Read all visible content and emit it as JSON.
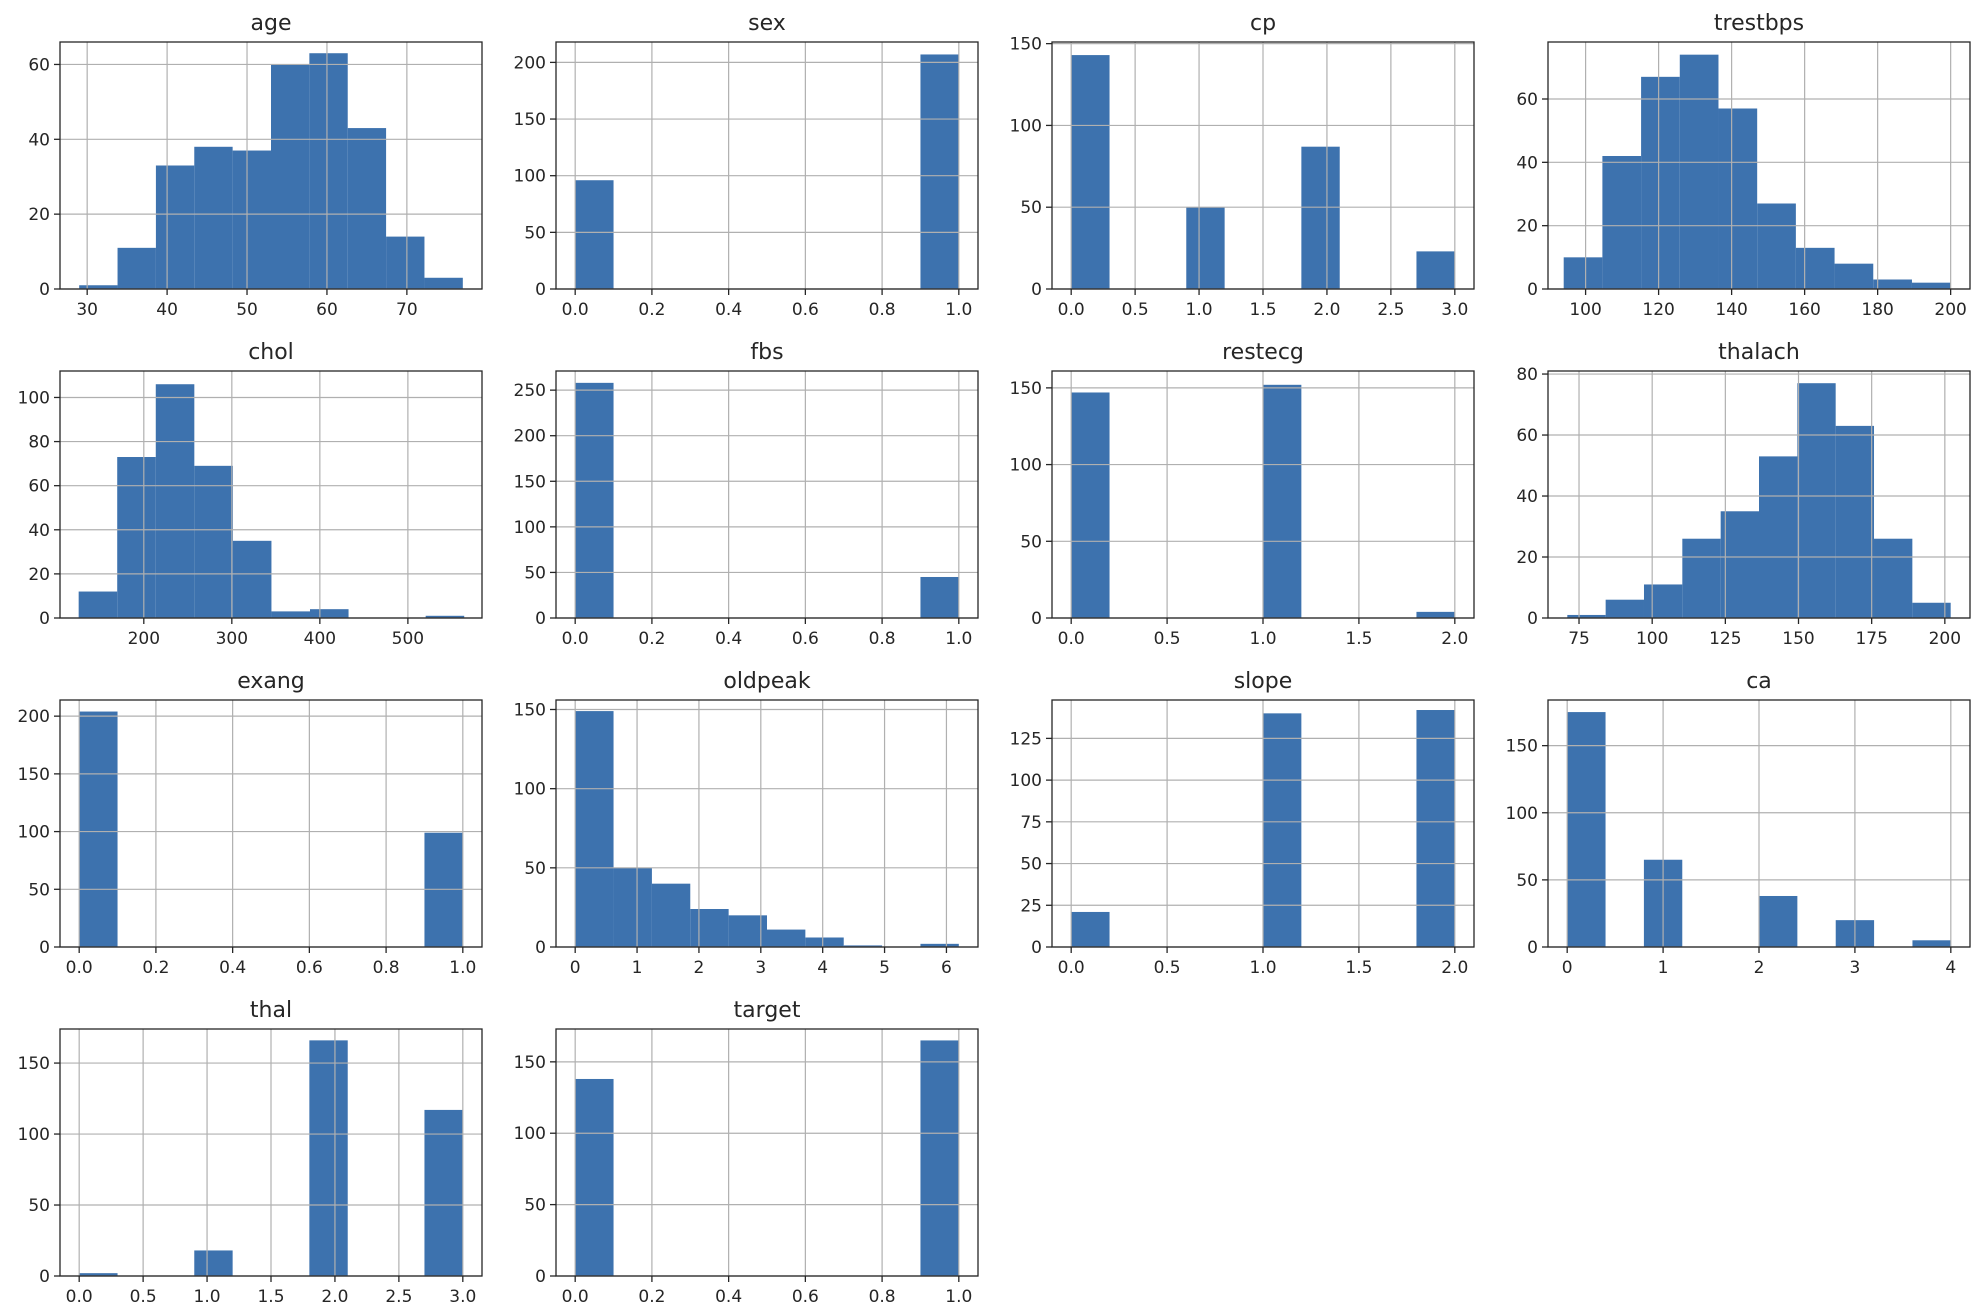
{
  "figure": {
    "bar_color": "#3d72ae",
    "grid_color": "#b0b0b0",
    "text_color": "#262626"
  },
  "chart_data": [
    {
      "type": "bar",
      "title": "age",
      "x_range": [
        26.6,
        79.4
      ],
      "ylim": [
        0,
        66
      ],
      "x_ticks": [
        30,
        40,
        50,
        60,
        70
      ],
      "x_tick_labels": [
        "30",
        "40",
        "50",
        "60",
        "70"
      ],
      "y_ticks": [
        0,
        20,
        40,
        60
      ],
      "y_tick_labels": [
        "0",
        "20",
        "40",
        "60"
      ],
      "bin_edges": [
        29,
        33.8,
        38.6,
        43.4,
        48.2,
        53,
        57.8,
        62.6,
        67.4,
        72.2,
        77
      ],
      "values": [
        1,
        11,
        33,
        38,
        37,
        60,
        63,
        43,
        14,
        3
      ]
    },
    {
      "type": "bar",
      "title": "sex",
      "x_range": [
        -0.05,
        1.05
      ],
      "ylim": [
        0,
        218
      ],
      "x_ticks": [
        0,
        0.2,
        0.4,
        0.6,
        0.8,
        1.0
      ],
      "x_tick_labels": [
        "0.0",
        "0.2",
        "0.4",
        "0.6",
        "0.8",
        "1.0"
      ],
      "y_ticks": [
        0,
        50,
        100,
        150,
        200
      ],
      "y_tick_labels": [
        "0",
        "50",
        "100",
        "150",
        "200"
      ],
      "bin_edges": [
        0,
        0.1,
        0.2,
        0.3,
        0.4,
        0.5,
        0.6,
        0.7,
        0.8,
        0.9,
        1.0
      ],
      "values": [
        96,
        0,
        0,
        0,
        0,
        0,
        0,
        0,
        0,
        207
      ]
    },
    {
      "type": "bar",
      "title": "cp",
      "x_range": [
        -0.15,
        3.15
      ],
      "ylim": [
        0,
        151
      ],
      "x_ticks": [
        0,
        0.5,
        1.0,
        1.5,
        2.0,
        2.5,
        3.0
      ],
      "x_tick_labels": [
        "0.0",
        "0.5",
        "1.0",
        "1.5",
        "2.0",
        "2.5",
        "3.0"
      ],
      "y_ticks": [
        0,
        50,
        100,
        150
      ],
      "y_tick_labels": [
        "0",
        "50",
        "100",
        "150"
      ],
      "bin_edges": [
        0,
        0.3,
        0.6,
        0.9,
        1.2,
        1.5,
        1.8,
        2.1,
        2.4,
        2.7,
        3.0
      ],
      "values": [
        143,
        0,
        0,
        50,
        0,
        0,
        87,
        0,
        0,
        23
      ]
    },
    {
      "type": "bar",
      "title": "trestbps",
      "x_range": [
        89.7,
        205.3
      ],
      "ylim": [
        0,
        78
      ],
      "x_ticks": [
        100,
        120,
        140,
        160,
        180,
        200
      ],
      "x_tick_labels": [
        "100",
        "120",
        "140",
        "160",
        "180",
        "200"
      ],
      "y_ticks": [
        0,
        20,
        40,
        60
      ],
      "y_tick_labels": [
        "0",
        "20",
        "40",
        "60"
      ],
      "bin_edges": [
        94,
        104.6,
        115.2,
        125.8,
        136.4,
        147,
        157.6,
        168.2,
        178.8,
        189.4,
        200
      ],
      "values": [
        10,
        42,
        67,
        74,
        57,
        27,
        13,
        8,
        3,
        2
      ]
    },
    {
      "type": "bar",
      "title": "chol",
      "x_range": [
        104.8,
        584.2
      ],
      "ylim": [
        0,
        112
      ],
      "x_ticks": [
        200,
        300,
        400,
        500
      ],
      "x_tick_labels": [
        "200",
        "300",
        "400",
        "500"
      ],
      "y_ticks": [
        0,
        20,
        40,
        60,
        80,
        100
      ],
      "y_tick_labels": [
        "0",
        "20",
        "40",
        "60",
        "80",
        "100"
      ],
      "bin_edges": [
        126,
        169.8,
        213.6,
        257.4,
        301.2,
        345,
        388.8,
        432.6,
        476.4,
        520.2,
        564
      ],
      "values": [
        12,
        73,
        106,
        69,
        35,
        3,
        4,
        0,
        0,
        1
      ]
    },
    {
      "type": "bar",
      "title": "fbs",
      "x_range": [
        -0.05,
        1.05
      ],
      "ylim": [
        0,
        271
      ],
      "x_ticks": [
        0,
        0.2,
        0.4,
        0.6,
        0.8,
        1.0
      ],
      "x_tick_labels": [
        "0.0",
        "0.2",
        "0.4",
        "0.6",
        "0.8",
        "1.0"
      ],
      "y_ticks": [
        0,
        50,
        100,
        150,
        200,
        250
      ],
      "y_tick_labels": [
        "0",
        "50",
        "100",
        "150",
        "200",
        "250"
      ],
      "bin_edges": [
        0,
        0.1,
        0.2,
        0.3,
        0.4,
        0.5,
        0.6,
        0.7,
        0.8,
        0.9,
        1.0
      ],
      "values": [
        258,
        0,
        0,
        0,
        0,
        0,
        0,
        0,
        0,
        45
      ]
    },
    {
      "type": "bar",
      "title": "restecg",
      "x_range": [
        -0.1,
        2.1
      ],
      "ylim": [
        0,
        161
      ],
      "x_ticks": [
        0,
        0.5,
        1.0,
        1.5,
        2.0
      ],
      "x_tick_labels": [
        "0.0",
        "0.5",
        "1.0",
        "1.5",
        "2.0"
      ],
      "y_ticks": [
        0,
        50,
        100,
        150
      ],
      "y_tick_labels": [
        "0",
        "50",
        "100",
        "150"
      ],
      "bin_edges": [
        0,
        0.2,
        0.4,
        0.6,
        0.8,
        1.0,
        1.2,
        1.4,
        1.6,
        1.8,
        2.0
      ],
      "values": [
        147,
        0,
        0,
        0,
        0,
        152,
        0,
        0,
        0,
        4
      ]
    },
    {
      "type": "bar",
      "title": "thalach",
      "x_range": [
        64.4,
        208.6
      ],
      "ylim": [
        0,
        81
      ],
      "x_ticks": [
        75,
        100,
        125,
        150,
        175,
        200
      ],
      "x_tick_labels": [
        "75",
        "100",
        "125",
        "150",
        "175",
        "200"
      ],
      "y_ticks": [
        0,
        20,
        40,
        60,
        80
      ],
      "y_tick_labels": [
        "0",
        "20",
        "40",
        "60",
        "80"
      ],
      "bin_edges": [
        71,
        84.1,
        97.2,
        110.3,
        123.4,
        136.5,
        149.6,
        162.7,
        175.8,
        188.9,
        202
      ],
      "values": [
        1,
        6,
        11,
        26,
        35,
        53,
        77,
        63,
        26,
        5
      ]
    },
    {
      "type": "bar",
      "title": "exang",
      "x_range": [
        -0.05,
        1.05
      ],
      "ylim": [
        0,
        214
      ],
      "x_ticks": [
        0,
        0.2,
        0.4,
        0.6,
        0.8,
        1.0
      ],
      "x_tick_labels": [
        "0.0",
        "0.2",
        "0.4",
        "0.6",
        "0.8",
        "1.0"
      ],
      "y_ticks": [
        0,
        50,
        100,
        150,
        200
      ],
      "y_tick_labels": [
        "0",
        "50",
        "100",
        "150",
        "200"
      ],
      "bin_edges": [
        0,
        0.1,
        0.2,
        0.3,
        0.4,
        0.5,
        0.6,
        0.7,
        0.8,
        0.9,
        1.0
      ],
      "values": [
        204,
        0,
        0,
        0,
        0,
        0,
        0,
        0,
        0,
        99
      ]
    },
    {
      "type": "bar",
      "title": "oldpeak",
      "x_range": [
        -0.31,
        6.51
      ],
      "ylim": [
        0,
        156
      ],
      "x_ticks": [
        0,
        1,
        2,
        3,
        4,
        5,
        6
      ],
      "x_tick_labels": [
        "0",
        "1",
        "2",
        "3",
        "4",
        "5",
        "6"
      ],
      "y_ticks": [
        0,
        50,
        100,
        150
      ],
      "y_tick_labels": [
        "0",
        "50",
        "100",
        "150"
      ],
      "bin_edges": [
        0,
        0.62,
        1.24,
        1.86,
        2.48,
        3.1,
        3.72,
        4.34,
        4.96,
        5.58,
        6.2
      ],
      "values": [
        149,
        50,
        40,
        24,
        20,
        11,
        6,
        1,
        0,
        2
      ]
    },
    {
      "type": "bar",
      "title": "slope",
      "x_range": [
        -0.1,
        2.1
      ],
      "ylim": [
        0,
        148
      ],
      "x_ticks": [
        0,
        0.5,
        1.0,
        1.5,
        2.0
      ],
      "x_tick_labels": [
        "0.0",
        "0.5",
        "1.0",
        "1.5",
        "2.0"
      ],
      "y_ticks": [
        0,
        25,
        50,
        75,
        100,
        125
      ],
      "y_tick_labels": [
        "0",
        "25",
        "50",
        "75",
        "100",
        "125"
      ],
      "bin_edges": [
        0,
        0.2,
        0.4,
        0.6,
        0.8,
        1.0,
        1.2,
        1.4,
        1.6,
        1.8,
        2.0
      ],
      "values": [
        21,
        0,
        0,
        0,
        0,
        140,
        0,
        0,
        0,
        142
      ]
    },
    {
      "type": "bar",
      "title": "ca",
      "x_range": [
        -0.2,
        4.2
      ],
      "ylim": [
        0,
        184
      ],
      "x_ticks": [
        0,
        1,
        2,
        3,
        4
      ],
      "x_tick_labels": [
        "0",
        "1",
        "2",
        "3",
        "4"
      ],
      "y_ticks": [
        0,
        50,
        100,
        150
      ],
      "y_tick_labels": [
        "0",
        "50",
        "100",
        "150"
      ],
      "bin_edges": [
        0,
        0.4,
        0.8,
        1.2,
        1.6,
        2.0,
        2.4,
        2.8,
        3.2,
        3.6,
        4.0
      ],
      "values": [
        175,
        0,
        65,
        0,
        0,
        38,
        0,
        20,
        0,
        5
      ]
    },
    {
      "type": "bar",
      "title": "thal",
      "x_range": [
        -0.15,
        3.15
      ],
      "ylim": [
        0,
        174
      ],
      "x_ticks": [
        0,
        0.5,
        1.0,
        1.5,
        2.0,
        2.5,
        3.0
      ],
      "x_tick_labels": [
        "0.0",
        "0.5",
        "1.0",
        "1.5",
        "2.0",
        "2.5",
        "3.0"
      ],
      "y_ticks": [
        0,
        50,
        100,
        150
      ],
      "y_tick_labels": [
        "0",
        "50",
        "100",
        "150"
      ],
      "bin_edges": [
        0,
        0.3,
        0.6,
        0.9,
        1.2,
        1.5,
        1.8,
        2.1,
        2.4,
        2.7,
        3.0
      ],
      "values": [
        2,
        0,
        0,
        18,
        0,
        0,
        166,
        0,
        0,
        117
      ]
    },
    {
      "type": "bar",
      "title": "target",
      "x_range": [
        -0.05,
        1.05
      ],
      "ylim": [
        0,
        173
      ],
      "x_ticks": [
        0,
        0.2,
        0.4,
        0.6,
        0.8,
        1.0
      ],
      "x_tick_labels": [
        "0.0",
        "0.2",
        "0.4",
        "0.6",
        "0.8",
        "1.0"
      ],
      "y_ticks": [
        0,
        50,
        100,
        150
      ],
      "y_tick_labels": [
        "0",
        "50",
        "100",
        "150"
      ],
      "bin_edges": [
        0,
        0.1,
        0.2,
        0.3,
        0.4,
        0.5,
        0.6,
        0.7,
        0.8,
        0.9,
        1.0
      ],
      "values": [
        138,
        0,
        0,
        0,
        0,
        0,
        0,
        0,
        0,
        165
      ]
    }
  ]
}
